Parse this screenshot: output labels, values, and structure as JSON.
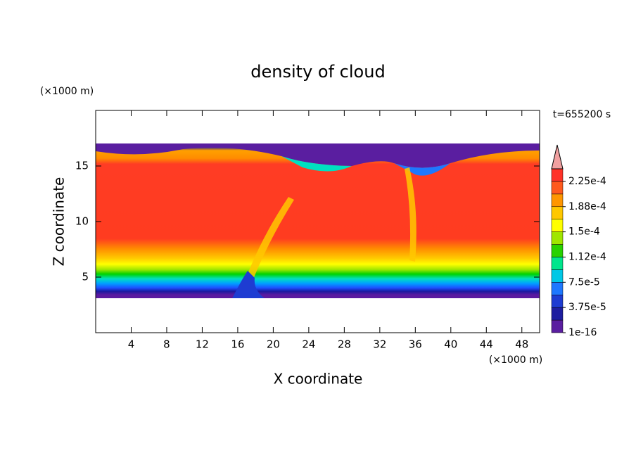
{
  "chart_data": {
    "type": "contour",
    "title": "density of cloud",
    "time_label": "t=655200 s",
    "xlabel": "X coordinate",
    "ylabel": "Z coordinate",
    "x_unit": "(×1000 m)",
    "y_unit": "(×1000 m)",
    "xlim": [
      0,
      50
    ],
    "ylim": [
      0,
      20
    ],
    "xticks": [
      4,
      8,
      12,
      16,
      20,
      24,
      28,
      32,
      36,
      40,
      44,
      48
    ],
    "yticks": [
      5,
      10,
      15
    ],
    "colorbar": {
      "lim": [
        0,
        0.00024375
      ],
      "ticks": [
        1e-16,
        {
          "value": 3.75e-05,
          "label": "3.75e-5"
        },
        {
          "value": 7.5e-05,
          "label": "7.5e-5"
        },
        {
          "value": 0.0001125,
          "label": "1.12e-4"
        },
        {
          "value": 0.00015,
          "label": "1.5e-4"
        },
        {
          "value": 0.0001875,
          "label": "1.88e-4"
        },
        {
          "value": 0.000225,
          "label": "2.25e-4"
        }
      ],
      "colors": [
        "#5a1ea0",
        "#1e1ea0",
        "#1e3cd2",
        "#1e78ff",
        "#00c8e6",
        "#00e68c",
        "#28d200",
        "#a0e600",
        "#ffff00",
        "#ffc800",
        "#ff9600",
        "#ff5a1e",
        "#ff3228"
      ],
      "extend_color": "#f0a0a0"
    }
  }
}
